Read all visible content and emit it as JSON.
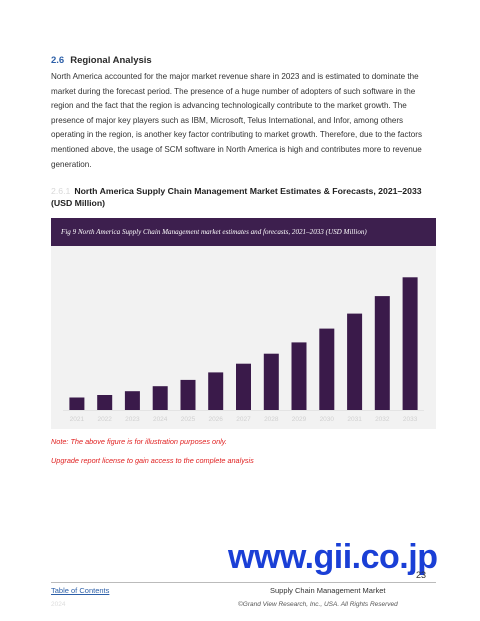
{
  "section": {
    "number": "2.6",
    "title": "Regional Analysis",
    "paragraph": "North America accounted for the major market revenue share in 2023 and is estimated to dominate the market during the forecast period. The presence of a huge number of adopters of such software in the region and the fact that the region is advancing technologically contribute to the market growth. The presence of major key players such as IBM, Microsoft, Telus International, and Infor, among others operating in the region, is another key factor contributing to market growth. Therefore, due to the factors mentioned above, the usage of SCM software in North America is high and contributes more to revenue generation."
  },
  "subsection": {
    "number": "2.6.1",
    "title": "North America Supply Chain Management Market Estimates & Forecasts, 2021–2033 (USD Million)"
  },
  "figure": {
    "caption": "Fig 9 North America Supply Chain Management market estimates and forecasts, 2021–2033 (USD Million)"
  },
  "chart_data": {
    "type": "bar",
    "categories": [
      "2021",
      "2022",
      "2023",
      "2024",
      "2025",
      "2026",
      "2027",
      "2028",
      "2029",
      "2030",
      "2031",
      "2032",
      "2033"
    ],
    "values": [
      10,
      12,
      15,
      19,
      24,
      30,
      37,
      45,
      54,
      65,
      77,
      91,
      106
    ],
    "bar_color": "#3a1a4a",
    "background_color": "#f2f2f2",
    "ylim": [
      0,
      115
    ],
    "grid": false,
    "legend": "none"
  },
  "notes": {
    "note1": "Note: The above figure is for illustration purposes only.",
    "note2": "Upgrade report license to gain access to the complete analysis"
  },
  "watermark": "www.gii.co.jp",
  "footer": {
    "page_number": "23",
    "toc_link": "Table of Contents",
    "report_title": "Supply Chain Management Market",
    "faint_text": "2024",
    "copyright": "©Grand View Research, Inc., USA. All Rights Reserved"
  },
  "colors": {
    "accent_blue": "#2c5fa8",
    "caption_bar": "#3d1f4e",
    "note_red": "#e02020",
    "watermark_blue": "#1a3fd6"
  }
}
